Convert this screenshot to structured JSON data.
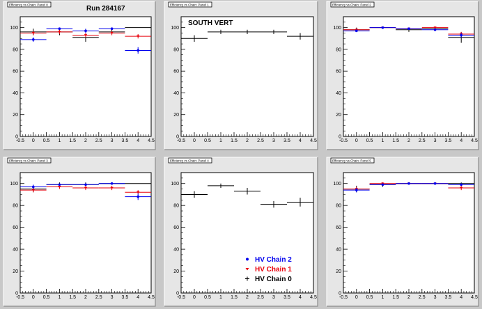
{
  "run_label": "Run 284167",
  "panel_label": "SOUTH VERT",
  "colors": {
    "chain0": "#000000",
    "chain1": "#e8000b",
    "chain2": "#0000ee"
  },
  "chart_data": [
    {
      "type": "scatter",
      "title": "Efficiency vs Chain: Panel 0",
      "x_ticks": [
        "-0.5",
        "0",
        "0.5",
        "1",
        "1.5",
        "2",
        "2.5",
        "3",
        "3.5",
        "4",
        "4.5"
      ],
      "y_ticks": [
        "0",
        "20",
        "40",
        "60",
        "80",
        "100"
      ],
      "xlim": [
        -0.5,
        4.5
      ],
      "ylim": [
        0,
        110
      ],
      "grid": false,
      "series": [
        {
          "key": "chain0",
          "x": [
            0,
            1,
            2,
            3,
            4
          ],
          "y": [
            96,
            96,
            91,
            96,
            100
          ],
          "err": [
            3,
            3,
            4,
            2,
            0
          ]
        },
        {
          "key": "chain1",
          "x": [
            0,
            1,
            2,
            3,
            4
          ],
          "y": [
            95,
            96,
            93,
            95,
            92
          ],
          "err": [
            2,
            2,
            2,
            2,
            2
          ]
        },
        {
          "key": "chain2",
          "x": [
            0,
            1,
            2,
            3,
            4
          ],
          "y": [
            89,
            99,
            97,
            99,
            79
          ],
          "err": [
            2,
            1,
            2,
            1,
            3
          ]
        }
      ]
    },
    {
      "type": "scatter",
      "title": "Efficiency vs Chain: Panel 1",
      "x_ticks": [
        "-0.5",
        "0",
        "0.5",
        "1",
        "1.5",
        "2",
        "2.5",
        "3",
        "3.5",
        "4",
        "4.5"
      ],
      "y_ticks": [
        "0",
        "20",
        "40",
        "60",
        "80",
        "100"
      ],
      "xlim": [
        -0.5,
        4.5
      ],
      "ylim": [
        0,
        110
      ],
      "grid": false,
      "series": [
        {
          "key": "chain0",
          "x": [
            0,
            1,
            2,
            3,
            4
          ],
          "y": [
            90,
            96,
            96,
            96,
            92
          ],
          "err": [
            3,
            2,
            2,
            2,
            3
          ]
        }
      ]
    },
    {
      "type": "scatter",
      "title": "Efficiency vs Chain: Panel 2",
      "x_ticks": [
        "-0.5",
        "0",
        "0.5",
        "1",
        "1.5",
        "2",
        "2.5",
        "3",
        "3.5",
        "4",
        "4.5"
      ],
      "y_ticks": [
        "0",
        "20",
        "40",
        "60",
        "80",
        "100"
      ],
      "xlim": [
        -0.5,
        4.5
      ],
      "ylim": [
        0,
        110
      ],
      "grid": false,
      "series": [
        {
          "key": "chain0",
          "x": [
            0,
            1,
            2,
            3,
            4
          ],
          "y": [
            98,
            100,
            98,
            99,
            91
          ],
          "err": [
            2,
            1,
            2,
            1,
            5
          ]
        },
        {
          "key": "chain1",
          "x": [
            0,
            1,
            2,
            3,
            4
          ],
          "y": [
            98,
            100,
            99,
            100,
            94
          ],
          "err": [
            1,
            1,
            1,
            1,
            2
          ]
        },
        {
          "key": "chain2",
          "x": [
            0,
            1,
            2,
            3,
            4
          ],
          "y": [
            97,
            100,
            99,
            98,
            93
          ],
          "err": [
            1,
            1,
            1,
            1,
            2
          ]
        }
      ]
    },
    {
      "type": "scatter",
      "title": "Efficiency vs Chain: Panel 3",
      "x_ticks": [
        "-0.5",
        "0",
        "0.5",
        "1",
        "1.5",
        "2",
        "2.5",
        "3",
        "3.5",
        "4",
        "4.5"
      ],
      "y_ticks": [
        "0",
        "20",
        "40",
        "60",
        "80",
        "100"
      ],
      "xlim": [
        -0.5,
        4.5
      ],
      "ylim": [
        0,
        110
      ],
      "grid": false,
      "series": [
        {
          "key": "chain0",
          "x": [
            0,
            1,
            2,
            3,
            4
          ],
          "y": [
            95,
            99,
            99,
            100,
            100
          ],
          "err": [
            3,
            2,
            2,
            1,
            0
          ]
        },
        {
          "key": "chain1",
          "x": [
            0,
            1,
            2,
            3,
            4
          ],
          "y": [
            94,
            97,
            96,
            96,
            92
          ],
          "err": [
            2,
            2,
            2,
            2,
            2
          ]
        },
        {
          "key": "chain2",
          "x": [
            0,
            1,
            2,
            3,
            4
          ],
          "y": [
            97,
            99,
            99,
            100,
            88
          ],
          "err": [
            2,
            1,
            1,
            1,
            3
          ]
        }
      ]
    },
    {
      "type": "scatter",
      "title": "Efficiency vs Chain: Panel 4",
      "x_ticks": [
        "-0.5",
        "0",
        "0.5",
        "1",
        "1.5",
        "2",
        "2.5",
        "3",
        "3.5",
        "4",
        "4.5"
      ],
      "y_ticks": [
        "0",
        "20",
        "40",
        "60",
        "80",
        "100"
      ],
      "xlim": [
        -0.5,
        4.5
      ],
      "ylim": [
        0,
        110
      ],
      "grid": false,
      "series": [
        {
          "key": "chain0",
          "x": [
            0,
            1,
            2,
            3,
            4
          ],
          "y": [
            90,
            98,
            93,
            81,
            83
          ],
          "err": [
            3,
            2,
            3,
            3,
            4
          ]
        }
      ],
      "legend": {
        "placement": "bottom-right",
        "entries": [
          {
            "key": "chain2",
            "label": "HV Chain 2"
          },
          {
            "key": "chain1",
            "label": "HV Chain 1"
          },
          {
            "key": "chain0",
            "label": "HV Chain 0"
          }
        ]
      }
    },
    {
      "type": "scatter",
      "title": "Efficiency vs Chain: Panel 5",
      "x_ticks": [
        "-0.5",
        "0",
        "0.5",
        "1",
        "1.5",
        "2",
        "2.5",
        "3",
        "3.5",
        "4",
        "4.5"
      ],
      "y_ticks": [
        "0",
        "20",
        "40",
        "60",
        "80",
        "100"
      ],
      "xlim": [
        -0.5,
        4.5
      ],
      "ylim": [
        0,
        110
      ],
      "grid": false,
      "series": [
        {
          "key": "chain0",
          "x": [
            0,
            1,
            2,
            3,
            4
          ],
          "y": [
            95,
            99,
            100,
            100,
            100
          ],
          "err": [
            3,
            2,
            1,
            1,
            1
          ]
        },
        {
          "key": "chain1",
          "x": [
            0,
            1,
            2,
            3,
            4
          ],
          "y": [
            95,
            100,
            100,
            100,
            96
          ],
          "err": [
            2,
            1,
            1,
            1,
            2
          ]
        },
        {
          "key": "chain2",
          "x": [
            0,
            1,
            2,
            3,
            4
          ],
          "y": [
            94,
            99,
            100,
            100,
            99
          ],
          "err": [
            2,
            1,
            1,
            1,
            1
          ]
        }
      ]
    }
  ]
}
